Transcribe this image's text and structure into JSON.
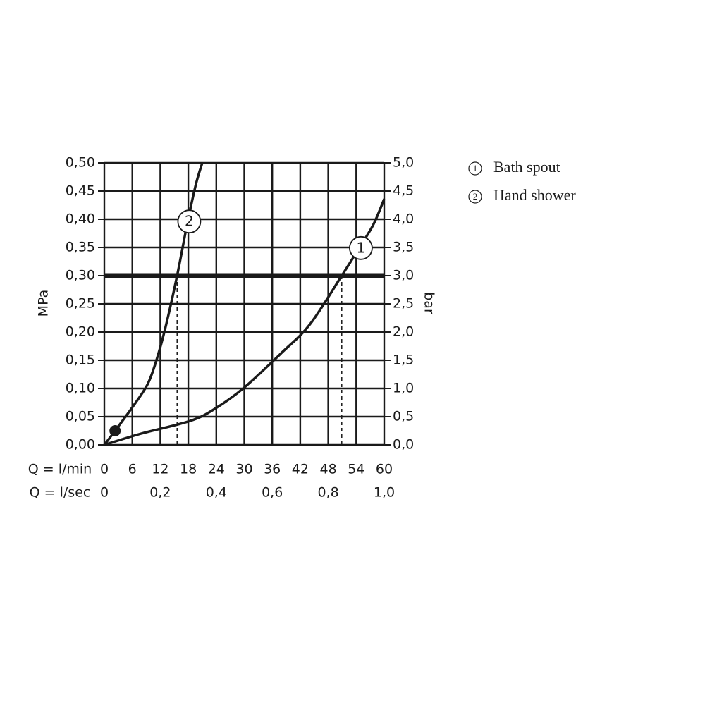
{
  "chart_data": {
    "type": "line",
    "x_label": "Q = l/min",
    "x2_label": "Q = l/sec",
    "y_label": "MPa",
    "y2_label": "bar",
    "xlim": [
      0,
      60
    ],
    "xticks": [
      0,
      6,
      12,
      18,
      24,
      30,
      36,
      42,
      48,
      54,
      60
    ],
    "x2lim": [
      0,
      1
    ],
    "x2ticks": [
      0,
      {
        "value": 0.2,
        "label": "0,2"
      },
      {
        "value": 0.4,
        "label": "0,4"
      },
      {
        "value": 0.6,
        "label": "0,6"
      },
      {
        "value": 0.8,
        "label": "0,8"
      },
      {
        "value": 1.0,
        "label": "1,0"
      }
    ],
    "ylim": [
      0,
      0.5
    ],
    "yticks": [
      {
        "value": 0,
        "label": "0,00"
      },
      {
        "value": 0.05,
        "label": "0,05"
      },
      {
        "value": 0.1,
        "label": "0,10"
      },
      {
        "value": 0.15,
        "label": "0,15"
      },
      {
        "value": 0.2,
        "label": "0,20"
      },
      {
        "value": 0.25,
        "label": "0,25"
      },
      {
        "value": 0.3,
        "label": "0,30"
      },
      {
        "value": 0.35,
        "label": "0,35"
      },
      {
        "value": 0.4,
        "label": "0,40"
      },
      {
        "value": 0.45,
        "label": "0,45"
      },
      {
        "value": 0.5,
        "label": "0,50"
      }
    ],
    "y2lim": [
      0,
      5
    ],
    "y2ticks": [
      {
        "value": 0,
        "label": "0,0"
      },
      {
        "value": 0.5,
        "label": "0,5"
      },
      {
        "value": 1,
        "label": "1,0"
      },
      {
        "value": 1.5,
        "label": "1,5"
      },
      {
        "value": 2,
        "label": "2,0"
      },
      {
        "value": 2.5,
        "label": "2,5"
      },
      {
        "value": 3,
        "label": "3,0"
      },
      {
        "value": 3.5,
        "label": "3,5"
      },
      {
        "value": 4,
        "label": "4,0"
      },
      {
        "value": 4.5,
        "label": "4,5"
      },
      {
        "value": 5,
        "label": "5,0"
      }
    ],
    "grid": true,
    "color": "#1a1a1a",
    "reference_y": 0.3,
    "drop_lines_x": [
      15.6,
      50.9
    ],
    "point": {
      "x": 2.3,
      "y": 0.025
    },
    "series": [
      {
        "name": "Bath spout",
        "color": "#1a1a1a",
        "marker_label": "1",
        "marker_x": 55.0,
        "marker_y": 0.349,
        "x": [
          0,
          7.9,
          18.4,
          23.7,
          29.9,
          38.1,
          44.1,
          50.9,
          54.7,
          57.7,
          60
        ],
        "values": [
          0,
          0.02,
          0.0425,
          0.064,
          0.101,
          0.164,
          0.214,
          0.3,
          0.35,
          0.391,
          0.436
        ]
      },
      {
        "name": "Hand shower",
        "color": "#1a1a1a",
        "marker_label": "2",
        "marker_x": 18.2,
        "marker_y": 0.396,
        "x": [
          0,
          2.3,
          6.3,
          9.3,
          11.2,
          13.1,
          15.6,
          17.7,
          19.6,
          21.0
        ],
        "values": [
          0,
          0.025,
          0.07,
          0.108,
          0.151,
          0.208,
          0.3,
          0.389,
          0.461,
          0.5
        ]
      }
    ]
  }
}
